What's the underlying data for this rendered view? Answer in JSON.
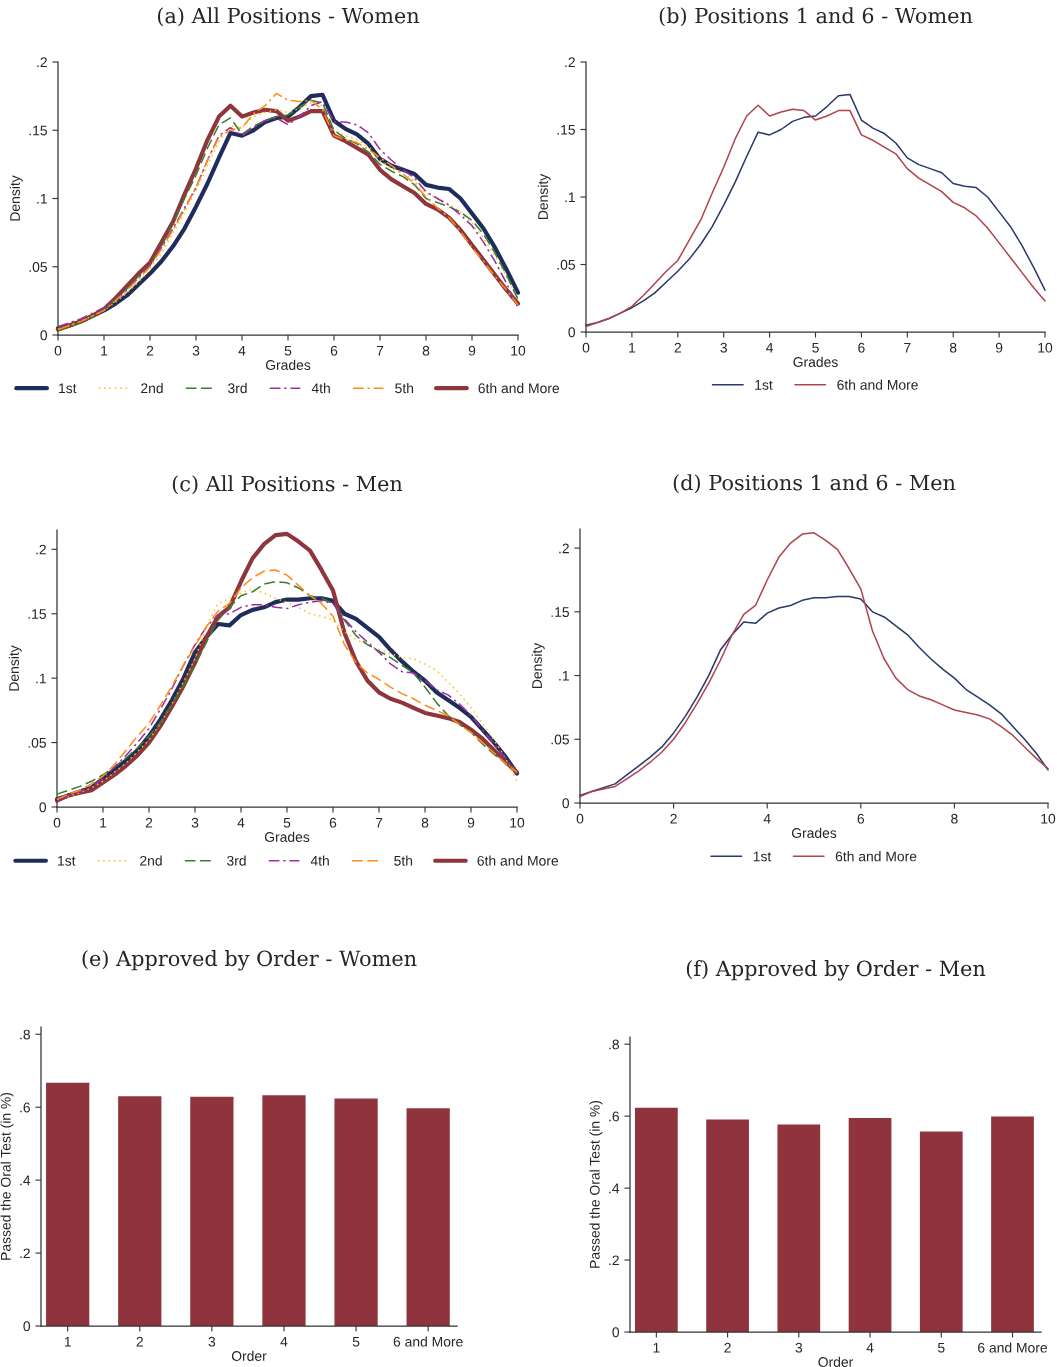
{
  "chart_data": [
    {
      "type": "line",
      "title": "(a) All Positions - Women",
      "xlabel": "Grades",
      "ylabel": "Density",
      "legend": "bottom",
      "x": [
        0,
        0.25,
        0.5,
        0.75,
        1,
        1.25,
        1.5,
        1.75,
        2,
        2.25,
        2.5,
        2.75,
        3,
        3.25,
        3.5,
        3.75,
        4,
        4.25,
        4.5,
        4.75,
        5,
        5.25,
        5.5,
        5.75,
        6,
        6.25,
        6.5,
        6.75,
        7,
        7.25,
        7.5,
        7.75,
        8,
        8.25,
        8.5,
        8.75,
        9,
        9.25,
        9.5,
        9.75,
        10
      ],
      "xlim": [
        0,
        10
      ],
      "xticks": [
        0,
        1,
        2,
        3,
        4,
        5,
        6,
        7,
        8,
        9,
        10
      ],
      "ylim": [
        0,
        0.2
      ],
      "yticks": [
        0,
        {
          "value": 0.05,
          "label": ".05"
        },
        {
          "value": 0.1,
          "label": ".1"
        },
        {
          "value": 0.15,
          "label": ".15"
        },
        {
          "value": 0.2,
          "label": ".2"
        }
      ],
      "series": [
        {
          "name": "1st",
          "color": "#1f2d5c",
          "line_style": "solid",
          "values": [
            0.005,
            0.007,
            0.01,
            0.014,
            0.018,
            0.023,
            0.029,
            0.037,
            0.045,
            0.054,
            0.065,
            0.078,
            0.094,
            0.111,
            0.13,
            0.148,
            0.146,
            0.15,
            0.156,
            0.159,
            0.16,
            0.167,
            0.175,
            0.176,
            0.157,
            0.151,
            0.147,
            0.14,
            0.129,
            0.124,
            0.121,
            0.118,
            0.11,
            0.108,
            0.107,
            0.1,
            0.089,
            0.078,
            0.064,
            0.048,
            0.031
          ]
        },
        {
          "name": "2nd",
          "color": "#f5c518",
          "line_style": "dotted",
          "values": [
            0.004,
            0.007,
            0.01,
            0.014,
            0.018,
            0.024,
            0.031,
            0.039,
            0.048,
            0.06,
            0.075,
            0.09,
            0.106,
            0.124,
            0.142,
            0.153,
            0.152,
            0.16,
            0.163,
            0.165,
            0.163,
            0.166,
            0.17,
            0.168,
            0.15,
            0.146,
            0.143,
            0.138,
            0.128,
            0.122,
            0.118,
            0.113,
            0.104,
            0.1,
            0.096,
            0.09,
            0.082,
            0.071,
            0.058,
            0.043,
            0.027
          ]
        },
        {
          "name": "3rd",
          "color": "#3a7d2c",
          "line_style": "dashed",
          "values": [
            0.003,
            0.006,
            0.009,
            0.013,
            0.018,
            0.026,
            0.034,
            0.043,
            0.051,
            0.065,
            0.082,
            0.1,
            0.117,
            0.137,
            0.154,
            0.159,
            0.147,
            0.153,
            0.157,
            0.16,
            0.161,
            0.167,
            0.172,
            0.17,
            0.15,
            0.144,
            0.14,
            0.134,
            0.125,
            0.12,
            0.116,
            0.11,
            0.1,
            0.097,
            0.094,
            0.09,
            0.084,
            0.074,
            0.06,
            0.044,
            0.026
          ]
        },
        {
          "name": "4th",
          "color": "#9b30a3",
          "line_style": "dashdot",
          "values": [
            0.006,
            0.009,
            0.012,
            0.016,
            0.02,
            0.025,
            0.033,
            0.042,
            0.051,
            0.064,
            0.078,
            0.093,
            0.108,
            0.128,
            0.146,
            0.152,
            0.146,
            0.152,
            0.157,
            0.159,
            0.154,
            0.16,
            0.168,
            0.171,
            0.156,
            0.156,
            0.154,
            0.148,
            0.136,
            0.128,
            0.121,
            0.115,
            0.105,
            0.1,
            0.095,
            0.088,
            0.08,
            0.068,
            0.054,
            0.038,
            0.02
          ]
        },
        {
          "name": "5th",
          "color": "#ff8c1a",
          "line_style": "dashdot",
          "values": [
            0.004,
            0.007,
            0.01,
            0.014,
            0.018,
            0.025,
            0.033,
            0.041,
            0.05,
            0.063,
            0.077,
            0.092,
            0.108,
            0.128,
            0.145,
            0.15,
            0.152,
            0.162,
            0.168,
            0.177,
            0.172,
            0.171,
            0.172,
            0.165,
            0.146,
            0.143,
            0.141,
            0.136,
            0.13,
            0.124,
            0.118,
            0.111,
            0.101,
            0.093,
            0.086,
            0.076,
            0.064,
            0.054,
            0.043,
            0.033,
            0.022
          ]
        },
        {
          "name": "6th and More",
          "color": "#8f353c",
          "line_style": "solid",
          "values": [
            0.004,
            0.007,
            0.01,
            0.014,
            0.019,
            0.027,
            0.036,
            0.045,
            0.053,
            0.068,
            0.083,
            0.103,
            0.122,
            0.143,
            0.16,
            0.168,
            0.16,
            0.163,
            0.165,
            0.164,
            0.157,
            0.16,
            0.164,
            0.164,
            0.146,
            0.142,
            0.137,
            0.132,
            0.121,
            0.114,
            0.109,
            0.104,
            0.096,
            0.092,
            0.086,
            0.077,
            0.066,
            0.055,
            0.044,
            0.033,
            0.023
          ]
        }
      ]
    },
    {
      "type": "line",
      "title": "(b) Positions 1 and 6 - Women",
      "xlabel": "Grades",
      "ylabel": "Density",
      "legend": "bottom",
      "x": [
        0,
        0.25,
        0.5,
        0.75,
        1,
        1.25,
        1.5,
        1.75,
        2,
        2.25,
        2.5,
        2.75,
        3,
        3.25,
        3.5,
        3.75,
        4,
        4.25,
        4.5,
        4.75,
        5,
        5.25,
        5.5,
        5.75,
        6,
        6.25,
        6.5,
        6.75,
        7,
        7.25,
        7.5,
        7.75,
        8,
        8.25,
        8.5,
        8.75,
        9,
        9.25,
        9.5,
        9.75,
        10
      ],
      "xlim": [
        0,
        10
      ],
      "xticks": [
        0,
        1,
        2,
        3,
        4,
        5,
        6,
        7,
        8,
        9,
        10
      ],
      "ylim": [
        0,
        0.2
      ],
      "yticks": [
        0,
        {
          "value": 0.05,
          "label": ".05"
        },
        {
          "value": 0.1,
          "label": ".1"
        },
        {
          "value": 0.15,
          "label": ".15"
        },
        {
          "value": 0.2,
          "label": ".2"
        }
      ],
      "series": [
        {
          "name": "1st",
          "color": "#2b3a6b",
          "line_style": "solid",
          "values": [
            0.005,
            0.007,
            0.01,
            0.014,
            0.018,
            0.023,
            0.029,
            0.037,
            0.045,
            0.054,
            0.065,
            0.078,
            0.094,
            0.111,
            0.13,
            0.148,
            0.146,
            0.15,
            0.156,
            0.159,
            0.16,
            0.167,
            0.175,
            0.176,
            0.157,
            0.151,
            0.147,
            0.14,
            0.129,
            0.124,
            0.121,
            0.118,
            0.11,
            0.108,
            0.107,
            0.1,
            0.089,
            0.078,
            0.064,
            0.048,
            0.031
          ]
        },
        {
          "name": "6th and More",
          "color": "#b0444e",
          "line_style": "solid",
          "values": [
            0.004,
            0.007,
            0.01,
            0.014,
            0.019,
            0.027,
            0.036,
            0.045,
            0.053,
            0.068,
            0.083,
            0.103,
            0.122,
            0.143,
            0.16,
            0.168,
            0.16,
            0.163,
            0.165,
            0.164,
            0.157,
            0.16,
            0.164,
            0.164,
            0.146,
            0.142,
            0.137,
            0.132,
            0.121,
            0.114,
            0.109,
            0.104,
            0.096,
            0.092,
            0.086,
            0.077,
            0.066,
            0.055,
            0.044,
            0.033,
            0.023
          ]
        }
      ]
    },
    {
      "type": "line",
      "title": "(c) All Positions - Men",
      "xlabel": "Grades",
      "ylabel": "Density",
      "legend": "bottom",
      "x": [
        0,
        0.25,
        0.5,
        0.75,
        1,
        1.25,
        1.5,
        1.75,
        2,
        2.25,
        2.5,
        2.75,
        3,
        3.25,
        3.5,
        3.75,
        4,
        4.25,
        4.5,
        4.75,
        5,
        5.25,
        5.5,
        5.75,
        6,
        6.25,
        6.5,
        6.75,
        7,
        7.25,
        7.5,
        7.75,
        8,
        8.25,
        8.5,
        8.75,
        9,
        9.25,
        9.5,
        9.75,
        10
      ],
      "xlim": [
        0,
        10
      ],
      "xticks": [
        0,
        1,
        2,
        3,
        4,
        5,
        6,
        7,
        8,
        9,
        10
      ],
      "ylim": [
        0,
        0.215
      ],
      "yticks": [
        0,
        {
          "value": 0.05,
          "label": ".05"
        },
        {
          "value": 0.1,
          "label": ".1"
        },
        {
          "value": 0.15,
          "label": ".15"
        },
        {
          "value": 0.2,
          "label": ".2"
        }
      ],
      "series": [
        {
          "name": "1st",
          "color": "#1f2d5c",
          "line_style": "solid",
          "values": [
            0.006,
            0.009,
            0.012,
            0.015,
            0.022,
            0.029,
            0.036,
            0.044,
            0.055,
            0.068,
            0.083,
            0.1,
            0.12,
            0.132,
            0.142,
            0.141,
            0.149,
            0.153,
            0.155,
            0.159,
            0.161,
            0.161,
            0.162,
            0.162,
            0.16,
            0.15,
            0.146,
            0.139,
            0.132,
            0.122,
            0.113,
            0.105,
            0.098,
            0.089,
            0.083,
            0.077,
            0.07,
            0.06,
            0.05,
            0.039,
            0.026
          ]
        },
        {
          "name": "2nd",
          "color": "#f5c518",
          "line_style": "dotted",
          "values": [
            0.006,
            0.008,
            0.011,
            0.015,
            0.02,
            0.027,
            0.034,
            0.043,
            0.052,
            0.065,
            0.08,
            0.097,
            0.115,
            0.14,
            0.158,
            0.162,
            0.166,
            0.169,
            0.166,
            0.162,
            0.159,
            0.155,
            0.15,
            0.148,
            0.145,
            0.136,
            0.13,
            0.126,
            0.122,
            0.119,
            0.116,
            0.115,
            0.111,
            0.106,
            0.097,
            0.088,
            0.077,
            0.065,
            0.052,
            0.038,
            0.02
          ]
        },
        {
          "name": "3rd",
          "color": "#3a7d2c",
          "line_style": "dashed",
          "values": [
            0.01,
            0.013,
            0.016,
            0.02,
            0.025,
            0.031,
            0.038,
            0.046,
            0.055,
            0.066,
            0.08,
            0.094,
            0.11,
            0.128,
            0.145,
            0.155,
            0.164,
            0.167,
            0.173,
            0.175,
            0.174,
            0.17,
            0.164,
            0.162,
            0.158,
            0.145,
            0.133,
            0.126,
            0.121,
            0.116,
            0.11,
            0.104,
            0.093,
            0.081,
            0.071,
            0.064,
            0.058,
            0.049,
            0.041,
            0.034,
            0.027
          ]
        },
        {
          "name": "4th",
          "color": "#9b30a3",
          "line_style": "dashdot",
          "values": [
            0.004,
            0.009,
            0.012,
            0.016,
            0.022,
            0.031,
            0.04,
            0.05,
            0.061,
            0.076,
            0.092,
            0.11,
            0.126,
            0.14,
            0.149,
            0.15,
            0.155,
            0.157,
            0.157,
            0.155,
            0.154,
            0.157,
            0.159,
            0.16,
            0.158,
            0.146,
            0.136,
            0.128,
            0.12,
            0.111,
            0.105,
            0.104,
            0.098,
            0.091,
            0.087,
            0.08,
            0.071,
            0.06,
            0.049,
            0.038,
            0.026
          ]
        },
        {
          "name": "5th",
          "color": "#ff8c1a",
          "line_style": "dashed",
          "values": [
            0.006,
            0.01,
            0.013,
            0.018,
            0.024,
            0.033,
            0.044,
            0.055,
            0.065,
            0.079,
            0.094,
            0.11,
            0.125,
            0.14,
            0.152,
            0.158,
            0.17,
            0.178,
            0.183,
            0.184,
            0.18,
            0.172,
            0.164,
            0.158,
            0.148,
            0.126,
            0.112,
            0.104,
            0.099,
            0.093,
            0.088,
            0.084,
            0.079,
            0.075,
            0.071,
            0.064,
            0.058,
            0.05,
            0.042,
            0.034,
            0.027
          ]
        },
        {
          "name": "6th and More",
          "color": "#8f353c",
          "line_style": "solid",
          "values": [
            0.005,
            0.009,
            0.011,
            0.013,
            0.019,
            0.025,
            0.032,
            0.04,
            0.05,
            0.063,
            0.078,
            0.094,
            0.112,
            0.132,
            0.148,
            0.155,
            0.175,
            0.193,
            0.204,
            0.211,
            0.212,
            0.206,
            0.199,
            0.184,
            0.168,
            0.135,
            0.113,
            0.098,
            0.089,
            0.084,
            0.081,
            0.077,
            0.073,
            0.071,
            0.069,
            0.066,
            0.06,
            0.053,
            0.044,
            0.035,
            0.027
          ]
        }
      ]
    },
    {
      "type": "line",
      "title": "(d) Positions 1 and 6 - Men",
      "xlabel": "Grades",
      "ylabel": "Density",
      "legend": "bottom",
      "x": [
        0,
        0.25,
        0.5,
        0.75,
        1,
        1.25,
        1.5,
        1.75,
        2,
        2.25,
        2.5,
        2.75,
        3,
        3.25,
        3.5,
        3.75,
        4,
        4.25,
        4.5,
        4.75,
        5,
        5.25,
        5.5,
        5.75,
        6,
        6.25,
        6.5,
        6.75,
        7,
        7.25,
        7.5,
        7.75,
        8,
        8.25,
        8.5,
        8.75,
        9,
        9.25,
        9.5,
        9.75,
        10
      ],
      "xlim": [
        0,
        10
      ],
      "xticks": [
        0,
        2,
        4,
        6,
        8,
        10
      ],
      "ylim": [
        0,
        0.215
      ],
      "yticks": [
        0,
        {
          "value": 0.05,
          "label": ".05"
        },
        {
          "value": 0.1,
          "label": ".1"
        },
        {
          "value": 0.15,
          "label": ".15"
        },
        {
          "value": 0.2,
          "label": ".2"
        }
      ],
      "series": [
        {
          "name": "1st",
          "color": "#2b3a6b",
          "line_style": "solid",
          "values": [
            0.006,
            0.009,
            0.012,
            0.015,
            0.022,
            0.029,
            0.036,
            0.044,
            0.055,
            0.068,
            0.083,
            0.1,
            0.12,
            0.132,
            0.142,
            0.141,
            0.149,
            0.153,
            0.155,
            0.159,
            0.161,
            0.161,
            0.162,
            0.162,
            0.16,
            0.15,
            0.146,
            0.139,
            0.132,
            0.122,
            0.113,
            0.105,
            0.098,
            0.089,
            0.083,
            0.077,
            0.07,
            0.06,
            0.05,
            0.039,
            0.026
          ]
        },
        {
          "name": "6th and More",
          "color": "#b0444e",
          "line_style": "solid",
          "values": [
            0.005,
            0.009,
            0.011,
            0.013,
            0.019,
            0.025,
            0.032,
            0.04,
            0.05,
            0.063,
            0.078,
            0.094,
            0.112,
            0.132,
            0.148,
            0.155,
            0.175,
            0.193,
            0.204,
            0.211,
            0.212,
            0.206,
            0.199,
            0.184,
            0.168,
            0.135,
            0.113,
            0.098,
            0.089,
            0.084,
            0.081,
            0.077,
            0.073,
            0.071,
            0.069,
            0.066,
            0.06,
            0.053,
            0.044,
            0.035,
            0.027
          ]
        }
      ]
    },
    {
      "type": "bar",
      "title": "(e) Approved by Order - Women",
      "xlabel": "Order",
      "ylabel": "Passed the Oral Test (in %)",
      "categories": [
        "1",
        "2",
        "3",
        "4",
        "5",
        "6 and More"
      ],
      "values": [
        0.667,
        0.63,
        0.629,
        0.633,
        0.624,
        0.597
      ],
      "color": "#8f343c",
      "ylim": [
        0,
        0.82
      ],
      "yticks": [
        0,
        {
          "value": 0.2,
          "label": ".2"
        },
        {
          "value": 0.4,
          "label": ".4"
        },
        {
          "value": 0.6,
          "label": ".6"
        },
        {
          "value": 0.8,
          "label": ".8"
        }
      ]
    },
    {
      "type": "bar",
      "title": "(f) Approved by Order - Men",
      "xlabel": "Order",
      "ylabel": "Passed the Oral Test (in %)",
      "categories": [
        "1",
        "2",
        "3",
        "4",
        "5",
        "6 and More"
      ],
      "values": [
        0.623,
        0.591,
        0.577,
        0.595,
        0.557,
        0.599
      ],
      "color": "#8f343c",
      "ylim": [
        0,
        0.82
      ],
      "yticks": [
        0,
        {
          "value": 0.2,
          "label": ".2"
        },
        {
          "value": 0.4,
          "label": ".4"
        },
        {
          "value": 0.6,
          "label": ".6"
        },
        {
          "value": 0.8,
          "label": ".8"
        }
      ]
    }
  ]
}
